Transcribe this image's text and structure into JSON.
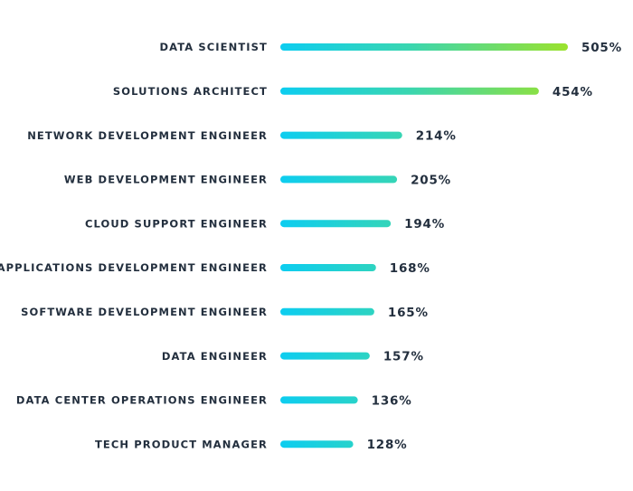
{
  "chart_data": {
    "type": "bar",
    "orientation": "horizontal",
    "title": "",
    "xlabel": "",
    "ylabel": "",
    "value_suffix": "%",
    "categories": [
      "DATA SCIENTIST",
      "SOLUTIONS ARCHITECT",
      "NETWORK DEVELOPMENT ENGINEER",
      "WEB DEVELOPMENT ENGINEER",
      "CLOUD SUPPORT ENGINEER",
      "APPLICATIONS DEVELOPMENT ENGINEER",
      "SOFTWARE DEVELOPMENT ENGINEER",
      "DATA ENGINEER",
      "DATA CENTER OPERATIONS ENGINEER",
      "TECH PRODUCT MANAGER"
    ],
    "values": [
      505,
      454,
      214,
      205,
      194,
      168,
      165,
      157,
      136,
      128
    ],
    "value_labels": [
      "505%",
      "454%",
      "214%",
      "205%",
      "194%",
      "168%",
      "165%",
      "157%",
      "136%",
      "128%"
    ],
    "xlim": [
      0,
      505
    ],
    "grid": false,
    "legend": "none",
    "colors": {
      "gradient_start": "#0dcdf0",
      "gradient_mid": "#3ad6b0",
      "gradient_end": "#9be22d",
      "text": "#232f3e"
    }
  }
}
